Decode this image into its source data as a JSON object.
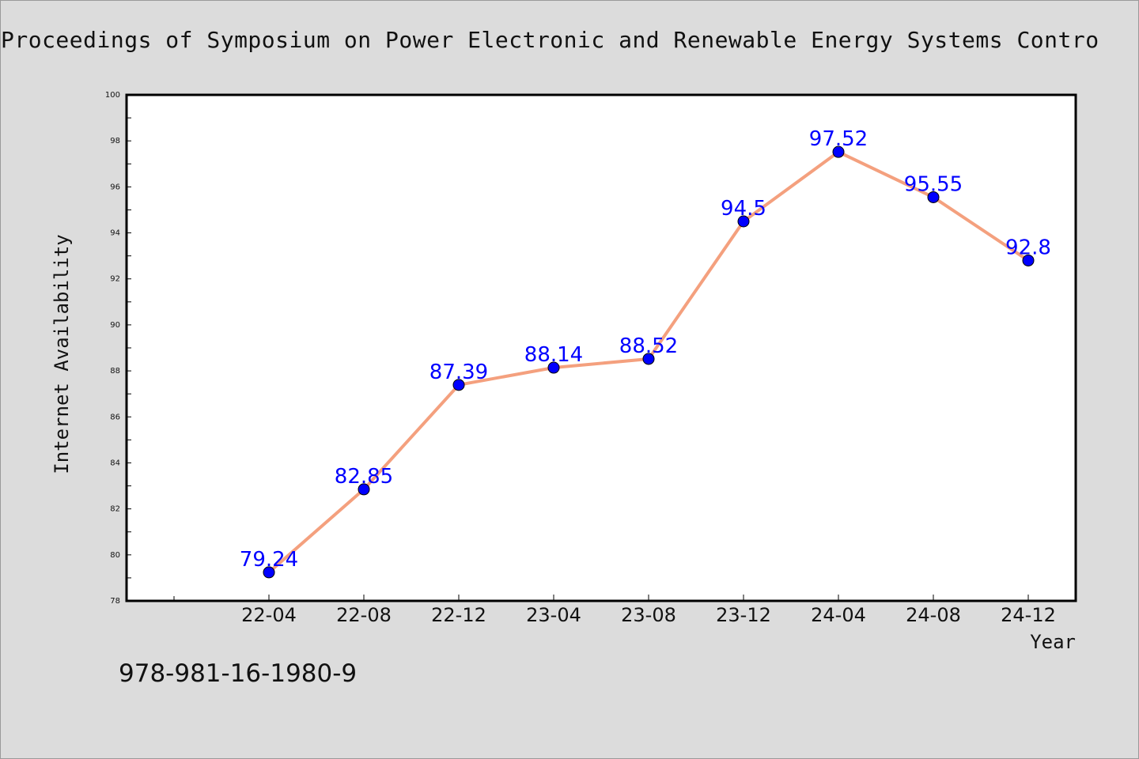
{
  "chart_data": {
    "type": "line",
    "title": "Proceedings of Symposium on Power Electronic and Renewable Energy Systems Contro",
    "xlabel": "Year",
    "ylabel": "Internet Availability",
    "categories": [
      "22-04",
      "22-08",
      "22-12",
      "23-04",
      "23-08",
      "23-12",
      "24-04",
      "24-08",
      "24-12"
    ],
    "series": [
      {
        "values": [
          79.24,
          82.85,
          87.39,
          88.14,
          88.52,
          94.5,
          97.52,
          95.55,
          92.8
        ],
        "data_labels": [
          "79.24",
          "82.85",
          "87.39",
          "88.14",
          "88.52",
          "94.5",
          "97.52",
          "95.55",
          "92.8"
        ]
      }
    ],
    "ylim": [
      78,
      100
    ],
    "yticks": [
      "78",
      "80",
      "82",
      "84",
      "86",
      "88",
      "90",
      "92",
      "94",
      "96",
      "98",
      "100"
    ],
    "grid": false,
    "colors": {
      "line": "#f4a07e",
      "marker": "#0000ff",
      "label": "#0000ff",
      "plot_bg": "#ffffff",
      "page_bg": "#dcdcdc"
    }
  },
  "footer": {
    "isbn": "978-981-16-1980-9"
  }
}
